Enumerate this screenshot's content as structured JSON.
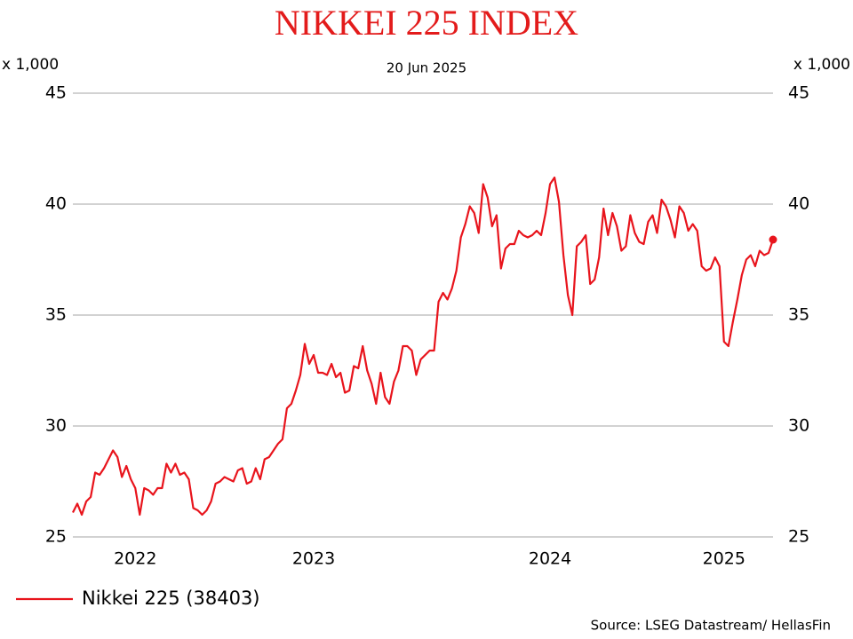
{
  "chart_data": {
    "type": "line",
    "title": "NIKKEI 225 INDEX",
    "subtitle": "20 Jun 2025",
    "ylabel": "x 1,000",
    "y2label": "x 1,000",
    "source": "Source: LSEG Datastream/ HellasFin",
    "categories": [
      null,
      null,
      null,
      null,
      null,
      null,
      null,
      null,
      null,
      null,
      null,
      null,
      null,
      null,
      "2022",
      null,
      null,
      null,
      null,
      null,
      null,
      null,
      null,
      null,
      null,
      null,
      null,
      null,
      null,
      null,
      null,
      null,
      null,
      null,
      null,
      null,
      null,
      null,
      null,
      null,
      null,
      null,
      null,
      null,
      null,
      null,
      null,
      null,
      null,
      null,
      null,
      null,
      null,
      null,
      "2023",
      null,
      null,
      null,
      null,
      null,
      null,
      null,
      null,
      null,
      null,
      null,
      null,
      null,
      null,
      null,
      null,
      null,
      null,
      null,
      null,
      null,
      null,
      null,
      null,
      null,
      null,
      null,
      null,
      null,
      null,
      null,
      null,
      null,
      null,
      null,
      null,
      null,
      null,
      null,
      null,
      null,
      null,
      null,
      null,
      null,
      null,
      null,
      null,
      null,
      null,
      null,
      null,
      "2024",
      null,
      null,
      null,
      null,
      null,
      null,
      null,
      null,
      null,
      null,
      null,
      null,
      null,
      null,
      null,
      null,
      null,
      null,
      null,
      null,
      null,
      null,
      null,
      null,
      null,
      null,
      null,
      null,
      null,
      null,
      null,
      null,
      null,
      null,
      null,
      null,
      null,
      null,
      "2025",
      null,
      null,
      null,
      null,
      null,
      null,
      null,
      null,
      null,
      null,
      null
    ],
    "series": [
      {
        "name": "Nikkei 225 (38403)",
        "color": "#e8141c",
        "values": [
          26.1,
          26.5,
          26.0,
          26.6,
          26.8,
          27.9,
          27.8,
          28.1,
          28.5,
          28.9,
          28.6,
          27.7,
          28.2,
          27.6,
          27.2,
          26.0,
          27.2,
          27.1,
          26.9,
          27.2,
          27.2,
          28.3,
          27.9,
          28.3,
          27.8,
          27.9,
          27.6,
          26.3,
          26.2,
          26.0,
          26.2,
          26.6,
          27.4,
          27.5,
          27.7,
          27.6,
          27.5,
          28.0,
          28.1,
          27.4,
          27.5,
          28.1,
          27.6,
          28.5,
          28.6,
          28.9,
          29.2,
          29.4,
          30.8,
          31.0,
          31.6,
          32.3,
          33.7,
          32.8,
          33.2,
          32.4,
          32.4,
          32.3,
          32.8,
          32.2,
          32.4,
          31.5,
          31.6,
          32.7,
          32.6,
          33.6,
          32.5,
          31.9,
          31.0,
          32.4,
          31.3,
          31.0,
          32.0,
          32.5,
          33.6,
          33.6,
          33.4,
          32.3,
          33.0,
          33.2,
          33.4,
          33.4,
          35.6,
          36.0,
          35.7,
          36.2,
          37.0,
          38.5,
          39.1,
          39.9,
          39.6,
          38.7,
          40.9,
          40.3,
          39.0,
          39.5,
          37.1,
          38.0,
          38.2,
          38.2,
          38.8,
          38.6,
          38.5,
          38.6,
          38.8,
          38.6,
          39.6,
          40.9,
          41.2,
          40.1,
          37.7,
          35.9,
          35.0,
          38.1,
          38.3,
          38.6,
          36.4,
          36.6,
          37.6,
          39.8,
          38.6,
          39.6,
          39.0,
          37.9,
          38.1,
          39.5,
          38.7,
          38.3,
          38.2,
          39.2,
          39.5,
          38.7,
          40.2,
          39.9,
          39.3,
          38.5,
          39.9,
          39.6,
          38.8,
          39.1,
          38.8,
          37.2,
          37.0,
          37.1,
          37.6,
          37.2,
          33.8,
          33.6,
          34.7,
          35.7,
          36.8,
          37.5,
          37.7,
          37.2,
          37.9,
          37.7,
          37.8,
          38.4
        ]
      }
    ],
    "ylim": [
      25,
      45
    ],
    "yticks": [
      25,
      30,
      35,
      40,
      45
    ],
    "y2lim": [
      25,
      45
    ],
    "y2ticks": [
      25,
      30,
      35,
      40,
      45
    ],
    "grid": true,
    "end_marker": true,
    "legend": "bottom-left"
  }
}
